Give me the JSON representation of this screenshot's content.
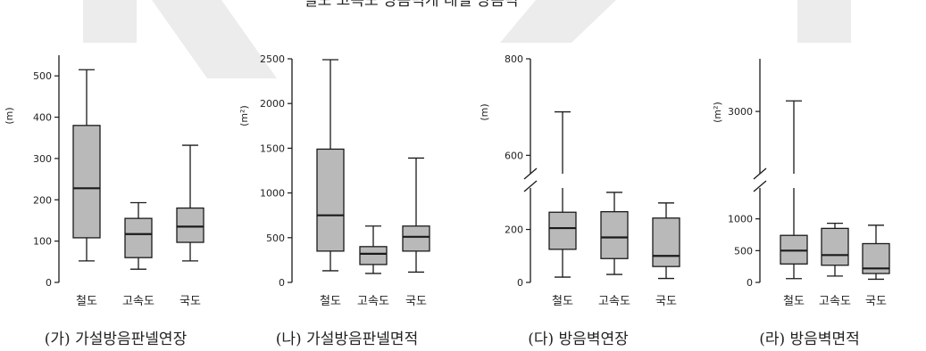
{
  "top_partial_title": "철도 고속도 방음벽개 대별 방음벽",
  "chart_data": [
    {
      "type": "box",
      "caption": "(가) 가설방음판넬연장",
      "ylabel": "(m)",
      "categories": [
        "철도",
        "고속도",
        "국도"
      ],
      "ylim": [
        0,
        550
      ],
      "yticks": [
        0,
        100,
        200,
        300,
        400,
        500
      ],
      "boxes": [
        {
          "min": 52,
          "q1": 108,
          "median": 228,
          "q3": 380,
          "max": 515
        },
        {
          "min": 32,
          "q1": 60,
          "median": 117,
          "q3": 155,
          "max": 193
        },
        {
          "min": 52,
          "q1": 97,
          "median": 135,
          "q3": 180,
          "max": 332
        }
      ]
    },
    {
      "type": "box",
      "caption": "(나) 가설방음판넬면적",
      "ylabel": "(m²)",
      "categories": [
        "철도",
        "고속도",
        "국도"
      ],
      "ylim": [
        0,
        2500
      ],
      "yticks": [
        0,
        500,
        1000,
        1500,
        2000,
        2500
      ],
      "boxes": [
        {
          "min": 130,
          "q1": 350,
          "median": 750,
          "q3": 1490,
          "max": 2490
        },
        {
          "min": 100,
          "q1": 200,
          "median": 320,
          "q3": 400,
          "max": 630
        },
        {
          "min": 115,
          "q1": 350,
          "median": 510,
          "q3": 630,
          "max": 1390
        }
      ]
    },
    {
      "type": "box",
      "caption": "(다) 방음벽연장",
      "ylabel": "(m)",
      "categories": [
        "철도",
        "고속도",
        "국도"
      ],
      "axis_break": {
        "lower_max": 360,
        "upper_min": 560,
        "upper_max": 800
      },
      "yticks": [
        0,
        200,
        600,
        800
      ],
      "boxes": [
        {
          "min": 20,
          "q1": 125,
          "median": 205,
          "q3": 265,
          "max": 690
        },
        {
          "min": 30,
          "q1": 90,
          "median": 170,
          "q3": 267,
          "max": 340
        },
        {
          "min": 15,
          "q1": 60,
          "median": 100,
          "q3": 243,
          "max": 300
        }
      ]
    },
    {
      "type": "box",
      "caption": "(라) 방음벽면적",
      "ylabel": "(m²)",
      "categories": [
        "철도",
        "고속도",
        "국도"
      ],
      "axis_break": {
        "lower_max": 1500,
        "upper_min": 2400,
        "upper_max": 3500
      },
      "yticks": [
        0,
        500,
        1000,
        3000
      ],
      "boxes": [
        {
          "min": 60,
          "q1": 290,
          "median": 500,
          "q3": 740,
          "max": 3100
        },
        {
          "min": 100,
          "q1": 270,
          "median": 430,
          "q3": 850,
          "max": 930
        },
        {
          "min": 50,
          "q1": 140,
          "median": 220,
          "q3": 610,
          "max": 900
        }
      ]
    }
  ],
  "colors": {
    "box_fill": "#b9b9b9",
    "line": "#1a1a1a",
    "watermark": "#ececec"
  }
}
